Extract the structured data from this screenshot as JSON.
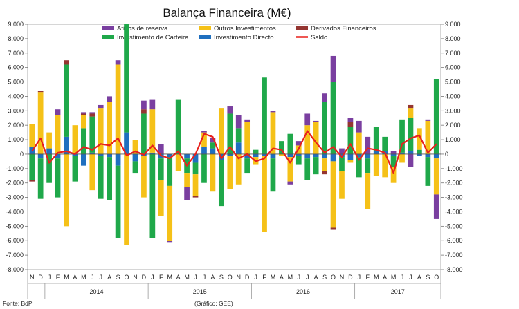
{
  "chart_data": {
    "type": "bar",
    "subtype": "stacked bar with line",
    "title": "Balança Financeira (M€)",
    "footnote_source": "Fonte: BdP",
    "footnote_credit": "(Gráfico: GEE)",
    "ylim": [
      -8000,
      9000
    ],
    "y_ticks": [
      "9.000",
      "8.000",
      "7.000",
      "6.000",
      "5.000",
      "4.000",
      "3.000",
      "2.000",
      "1.000",
      "0",
      "-1.000",
      "-2.000",
      "-3.000",
      "-4.000",
      "-5.000",
      "-6.000",
      "-7.000",
      "-8.000"
    ],
    "y_tick_values": [
      9000,
      8000,
      7000,
      6000,
      5000,
      4000,
      3000,
      2000,
      1000,
      0,
      -1000,
      -2000,
      -3000,
      -4000,
      -5000,
      -6000,
      -7000,
      -8000
    ],
    "categories": [
      "N",
      "D",
      "J",
      "F",
      "M",
      "A",
      "M",
      "J",
      "J",
      "A",
      "S",
      "O",
      "N",
      "D",
      "J",
      "F",
      "M",
      "A",
      "M",
      "J",
      "J",
      "A",
      "S",
      "O",
      "N",
      "D",
      "J",
      "F",
      "M",
      "A",
      "M",
      "J",
      "J",
      "A",
      "S",
      "O",
      "N",
      "D",
      "J",
      "F",
      "M",
      "A",
      "M",
      "J",
      "J",
      "A",
      "S",
      "O"
    ],
    "year_labels": [
      {
        "label": "2014",
        "start": 2,
        "end": 13
      },
      {
        "label": "2015",
        "start": 14,
        "end": 25
      },
      {
        "label": "2016",
        "start": 26,
        "end": 37
      },
      {
        "label": "2017",
        "start": 38,
        "end": 47
      }
    ],
    "legend": [
      "Ativos de reserva",
      "Outros Investimentos",
      "Derivados Financeiros",
      "Investimento de Carteira",
      "Investimento Directo",
      "Saldo"
    ],
    "series": [
      {
        "name": "Investimento Directo",
        "color": "#1f6fbf",
        "values": [
          500,
          -300,
          400,
          -300,
          1200,
          -100,
          -800,
          100,
          -100,
          -200,
          -800,
          1500,
          -500,
          -100,
          100,
          -300,
          -200,
          0,
          -300,
          -600,
          500,
          400,
          -400,
          -100,
          800,
          -300,
          -200,
          -100,
          -300,
          0,
          -200,
          -100,
          -300,
          -200,
          -300,
          -500,
          -200,
          -400,
          -200,
          -300,
          200,
          200,
          -100,
          100,
          200,
          -100,
          -200,
          -300
        ]
      },
      {
        "name": "Investimento de Carteira",
        "color": "#1fa84a",
        "values": [
          -1800,
          -2800,
          -2000,
          -2700,
          5000,
          -1800,
          1800,
          2500,
          -3000,
          -3000,
          -5000,
          7500,
          -800,
          2800,
          -5800,
          -1500,
          -2000,
          3800,
          -1000,
          -800,
          -2000,
          400,
          -3200,
          2800,
          1000,
          -1000,
          300,
          5300,
          -2300,
          900,
          1400,
          -600,
          -1500,
          -1200,
          3600,
          5000,
          -1000,
          1900,
          -1400,
          -1000,
          1700,
          1000,
          -800,
          2300,
          2300,
          300,
          -2000,
          5200
        ]
      },
      {
        "name": "Outros Investimentos",
        "color": "#f5c118",
        "values": [
          1600,
          4300,
          1100,
          2700,
          -5000,
          2000,
          900,
          -2500,
          3200,
          3600,
          6200,
          -6300,
          1000,
          -2900,
          3000,
          -2500,
          -3800,
          -1200,
          -1000,
          -1500,
          1000,
          -2600,
          3200,
          -2300,
          -2100,
          2200,
          -500,
          -5300,
          2900,
          -100,
          -1700,
          600,
          2000,
          2200,
          -900,
          -4600,
          -1900,
          -200,
          1500,
          -2500,
          -1500,
          -1600,
          -1100,
          -600,
          700,
          1500,
          2300,
          -2500
        ]
      },
      {
        "name": "Derivados Financeiros",
        "color": "#943531",
        "values": [
          -100,
          100,
          0,
          0,
          300,
          0,
          100,
          200,
          0,
          0,
          0,
          0,
          0,
          300,
          0,
          0,
          0,
          0,
          0,
          -100,
          0,
          0,
          0,
          0,
          0,
          0,
          0,
          0,
          0,
          0,
          0,
          0,
          0,
          0,
          -200,
          -100,
          0,
          300,
          0,
          0,
          0,
          0,
          0,
          0,
          200,
          0,
          0,
          0
        ]
      },
      {
        "name": "Ativos de reserva",
        "color": "#7a3fa0",
        "values": [
          0,
          0,
          0,
          400,
          0,
          0,
          100,
          100,
          200,
          400,
          300,
          0,
          0,
          600,
          700,
          700,
          -100,
          0,
          -900,
          0,
          100,
          300,
          0,
          500,
          900,
          200,
          0,
          0,
          100,
          0,
          -200,
          300,
          800,
          100,
          600,
          1800,
          400,
          300,
          800,
          1200,
          0,
          0,
          200,
          0,
          -900,
          0,
          100,
          -1700
        ]
      },
      {
        "name": "Saldo",
        "type": "line",
        "color": "#e8201c",
        "values": [
          200,
          1100,
          -600,
          100,
          200,
          0,
          500,
          300,
          700,
          600,
          1100,
          -100,
          200,
          -50,
          600,
          -100,
          -300,
          200,
          -800,
          0,
          1400,
          1200,
          -300,
          500,
          -300,
          0,
          -500,
          -300,
          400,
          300,
          -600,
          400,
          1600,
          800,
          100,
          500,
          -200,
          700,
          -400,
          400,
          300,
          100,
          -1300,
          700,
          1100,
          1300,
          100,
          700
        ]
      }
    ]
  }
}
